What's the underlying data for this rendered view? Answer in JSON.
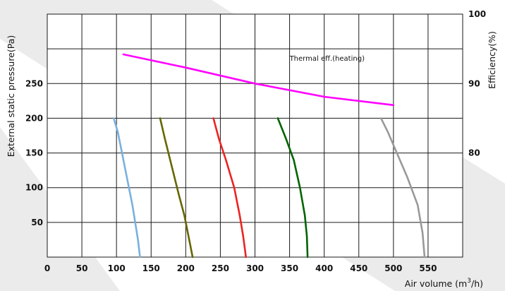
{
  "chart_data": {
    "type": "line",
    "xlabel": "Air volume (m³/h)",
    "xlabel_parts": {
      "main": "Air volume (m",
      "sup": "3",
      "tail": "/h)"
    },
    "ylabel": "External static pressure(Pa)",
    "y2label": "Efficiency(%)",
    "xlim": [
      0,
      600
    ],
    "ylim": [
      0,
      350
    ],
    "y2lim": [
      65,
      100
    ],
    "x_ticks": [
      "0",
      "50",
      "100",
      "150",
      "200",
      "250",
      "300",
      "350",
      "400",
      "450",
      "500",
      "550"
    ],
    "y_ticks": [
      "50",
      "100",
      "150",
      "200",
      "250"
    ],
    "y2_ticks": [
      "80",
      "90",
      "100"
    ],
    "grid": true,
    "annotations": [
      {
        "text": "Thermal eff.(heating)",
        "x": 350,
        "y": 93.3,
        "axis": "y2"
      }
    ],
    "series": [
      {
        "color": "#7ab0de",
        "axis": "y",
        "x": [
          96,
          102,
          108,
          118,
          123,
          127,
          131,
          134
        ],
        "y": [
          200,
          180,
          150,
          100,
          75,
          50,
          25,
          0
        ]
      },
      {
        "color": "#666600",
        "axis": "y",
        "x": [
          163,
          170,
          180,
          190,
          198,
          204,
          210
        ],
        "y": [
          200,
          170,
          130,
          90,
          60,
          30,
          0
        ]
      },
      {
        "color": "#ee2222",
        "axis": "y",
        "x": [
          240,
          248,
          258,
          270,
          278,
          283,
          287
        ],
        "y": [
          200,
          170,
          140,
          100,
          60,
          30,
          0
        ]
      },
      {
        "color": "#006400",
        "axis": "y",
        "x": [
          333,
          345,
          356,
          365,
          372,
          375,
          376
        ],
        "y": [
          200,
          170,
          140,
          100,
          60,
          30,
          0
        ]
      },
      {
        "color": "#999999",
        "axis": "y",
        "x": [
          482,
          492,
          505,
          520,
          535,
          542,
          545
        ],
        "y": [
          200,
          180,
          150,
          115,
          75,
          35,
          0
        ]
      },
      {
        "color": "#ff00ff",
        "axis": "y2",
        "x": [
          110,
          200,
          300,
          400,
          500
        ],
        "y": [
          94.2,
          92.3,
          90.0,
          88.1,
          86.9
        ]
      }
    ]
  },
  "colors": {
    "stripe": "#ebebeb",
    "grid": "#1a1a1a"
  }
}
